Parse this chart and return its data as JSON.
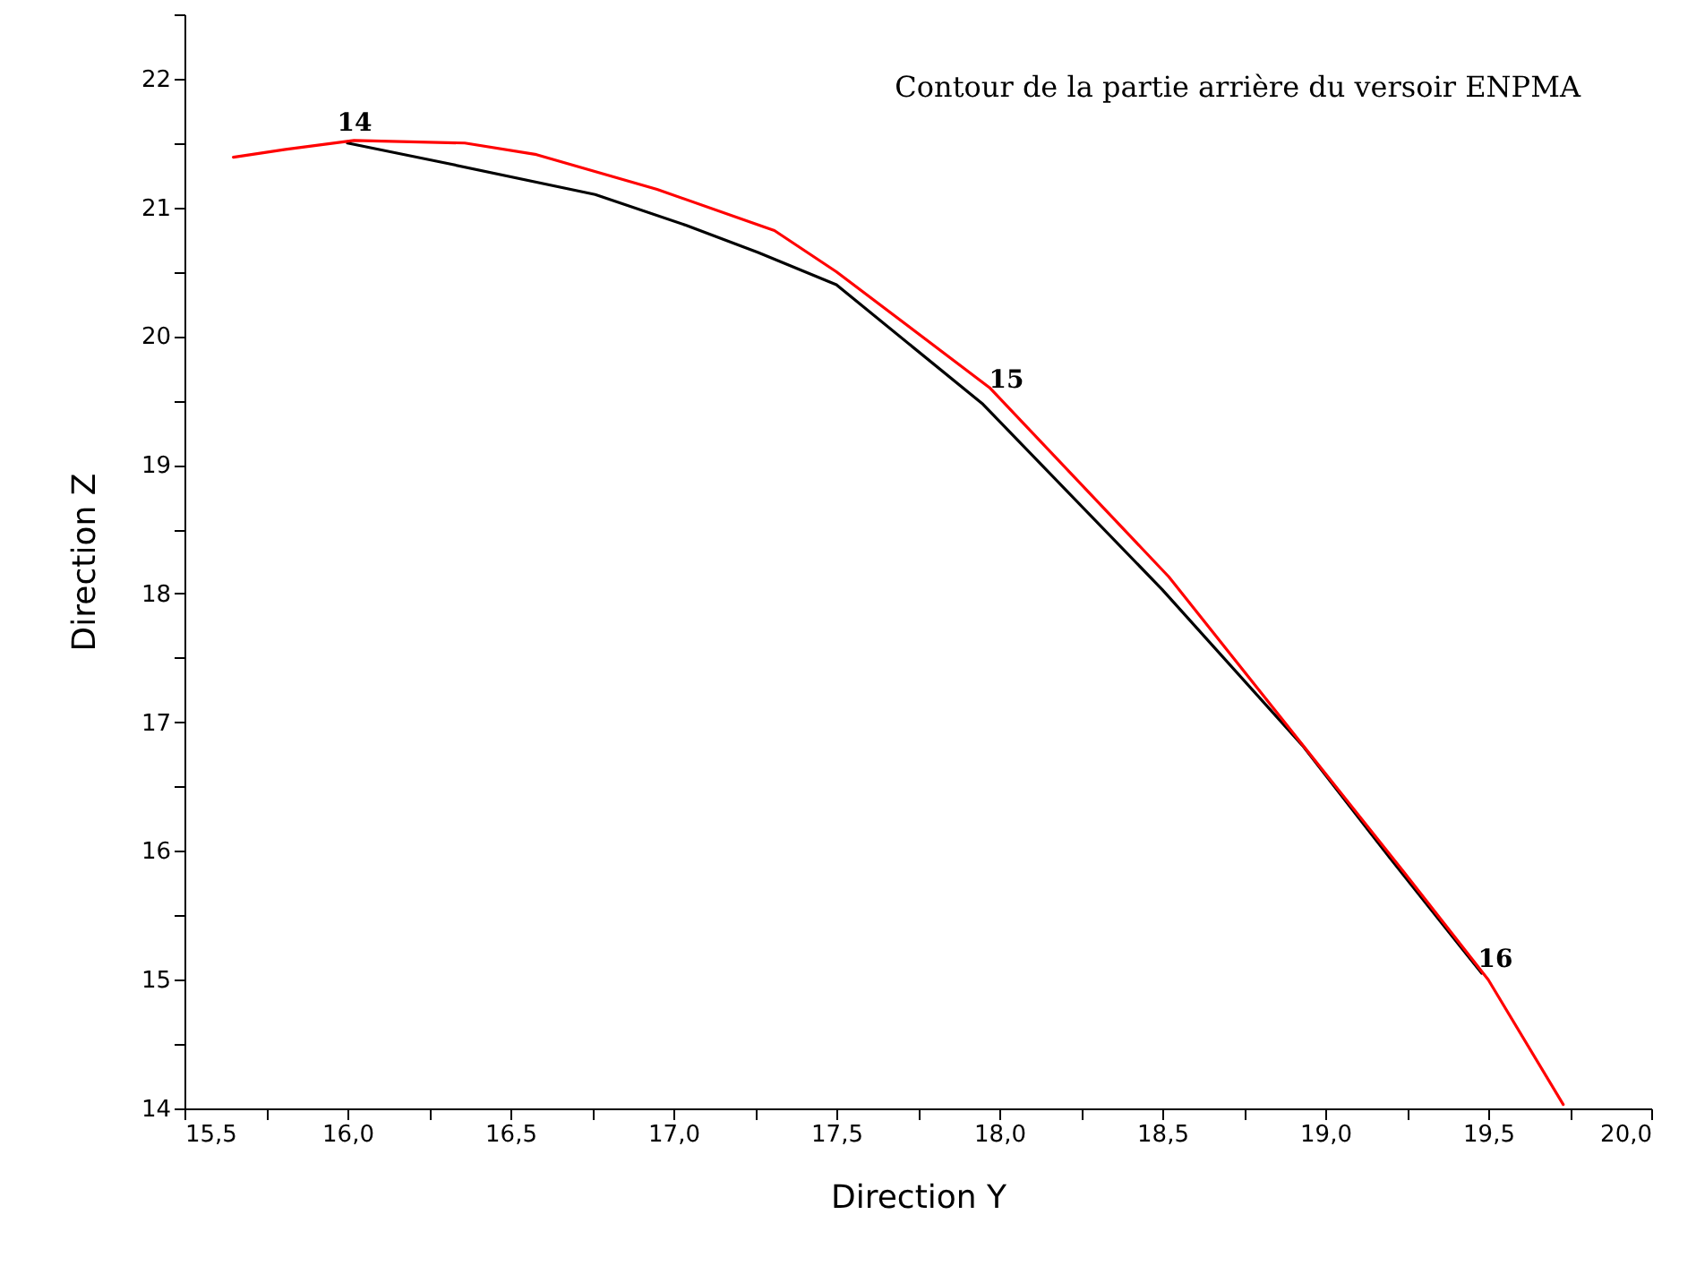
{
  "chart_data": {
    "type": "line",
    "title": "Contour de la partie arrière du versoir ENPMA",
    "xlabel": "Direction  Y",
    "ylabel": "Direction Z",
    "series": [
      {
        "color": "#000000",
        "x": [
          16.0,
          16.31,
          16.76,
          17.04,
          17.26,
          17.5,
          17.95,
          18.5,
          18.93,
          19.2,
          19.42,
          19.48
        ],
        "values": [
          21.5,
          21.34,
          21.1,
          20.86,
          20.65,
          20.4,
          19.47,
          18.03,
          16.82,
          15.94,
          15.24,
          15.05
        ]
      },
      {
        "color": "#ff0000",
        "x": [
          15.65,
          15.81,
          16.02,
          16.36,
          16.58,
          16.95,
          17.31,
          17.5,
          17.97,
          18.52,
          18.96,
          19.24,
          19.5,
          19.73
        ],
        "values": [
          21.39,
          21.45,
          21.52,
          21.5,
          21.41,
          21.14,
          20.82,
          20.5,
          19.6,
          18.13,
          16.73,
          15.84,
          15.0,
          14.03
        ]
      }
    ],
    "annotations": [
      {
        "text": "14",
        "x": 16.0,
        "y": 21.5
      },
      {
        "text": "15",
        "x": 18.0,
        "y": 19.5
      },
      {
        "text": "16",
        "x": 19.5,
        "y": 15.0
      }
    ],
    "xlim": [
      15.5,
      20.0
    ],
    "ylim": [
      14,
      22.5
    ],
    "xticks": [
      {
        "value": 15.5,
        "label": "15,5"
      },
      {
        "value": 15.75,
        "label": null
      },
      {
        "value": 16.0,
        "label": "16,0"
      },
      {
        "value": 16.25,
        "label": null
      },
      {
        "value": 16.5,
        "label": "16,5"
      },
      {
        "value": 16.75,
        "label": null
      },
      {
        "value": 17.0,
        "label": "17,0"
      },
      {
        "value": 17.25,
        "label": null
      },
      {
        "value": 17.5,
        "label": "17,5"
      },
      {
        "value": 17.75,
        "label": null
      },
      {
        "value": 18.0,
        "label": "18,0"
      },
      {
        "value": 18.25,
        "label": null
      },
      {
        "value": 18.5,
        "label": "18,5"
      },
      {
        "value": 18.75,
        "label": null
      },
      {
        "value": 19.0,
        "label": "19,0"
      },
      {
        "value": 19.25,
        "label": null
      },
      {
        "value": 19.5,
        "label": "19,5"
      },
      {
        "value": 19.75,
        "label": null
      },
      {
        "value": 20.0,
        "label": "20,0"
      }
    ],
    "yticks": [
      14,
      {
        "value": 14.5,
        "label": null
      },
      15,
      {
        "value": 15.5,
        "label": null
      },
      16,
      {
        "value": 16.5,
        "label": null
      },
      17,
      {
        "value": 17.5,
        "label": null
      },
      18,
      {
        "value": 18.5,
        "label": null
      },
      19,
      {
        "value": 19.5,
        "label": null
      },
      20,
      {
        "value": 20.5,
        "label": null
      },
      21,
      {
        "value": 21.5,
        "label": null
      },
      22,
      {
        "value": 22.5,
        "label": null
      }
    ],
    "grid": false,
    "legend": false,
    "marker": "none",
    "line_style": "solid"
  }
}
